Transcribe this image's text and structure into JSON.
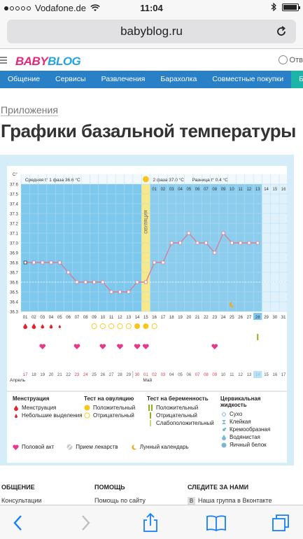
{
  "status_bar": {
    "carrier": "Vodafone.de",
    "time": "11:04",
    "battery_level": 0.95
  },
  "browser": {
    "url": "babyblog.ru"
  },
  "site": {
    "logo_part1": "BABY",
    "logo_part2": "BLOG",
    "login_label": "Отв",
    "nav": [
      "Общение",
      "Сервисы",
      "Развлечения",
      "Барахолка",
      "Совместные покупки",
      "Беременн"
    ],
    "breadcrumb": "Приложения",
    "title": "Графики базальной температуры"
  },
  "chart_data": {
    "type": "line",
    "y_unit": "C°",
    "ylim": [
      36.3,
      37.6
    ],
    "y_ticks": [
      "37.6",
      "37.5",
      "37.4",
      "37.3",
      "37.2",
      "37.1",
      "37.0",
      "36.9",
      "36.8",
      "36.7",
      "36.6",
      "36.5",
      "36.4",
      "36.3"
    ],
    "cycle_days": [
      "01",
      "02",
      "03",
      "04",
      "05",
      "06",
      "07",
      "08",
      "09",
      "10",
      "11",
      "12",
      "13",
      "14",
      "15",
      "16",
      "17",
      "18",
      "19",
      "20",
      "21",
      "22",
      "23",
      "24",
      "25",
      "26",
      "27",
      "28",
      "29",
      "30",
      "31"
    ],
    "dates": [
      "17",
      "18",
      "19",
      "20",
      "21",
      "22",
      "23",
      "24",
      "25",
      "26",
      "27",
      "28",
      "29",
      "30",
      "01",
      "02",
      "03",
      "04",
      "05",
      "06",
      "07",
      "08",
      "09",
      "10",
      "11",
      "12",
      "13",
      "14",
      "15",
      "16",
      "17"
    ],
    "top_dates": [
      "01",
      "02",
      "03",
      "04",
      "05",
      "06",
      "07",
      "08",
      "09",
      "10",
      "11",
      "12",
      "13",
      "14",
      "15",
      "16"
    ],
    "month_labels": {
      "first": "Апрель",
      "second": "Май"
    },
    "phase1_label": "Средняя t° 1 фаза 36.6 °С",
    "phase2_label": "2 фаза 37.0 °С",
    "diff_label": "Разница t° 0.4 °С",
    "ovulation_label": "ОВУЛЯЦИЯ",
    "ovulation_day": 15,
    "temperature": [
      36.8,
      36.8,
      36.8,
      36.8,
      36.8,
      36.7,
      36.6,
      36.6,
      36.6,
      36.6,
      36.5,
      36.5,
      36.5,
      36.6,
      36.6,
      36.8,
      36.8,
      37.0,
      37.0,
      37.1,
      37.0,
      37.0,
      36.9,
      37.1,
      37.0,
      37.0,
      37.0,
      37.0
    ],
    "phase1_mean": 36.6,
    "coverline": 36.6,
    "menstruation_days": [
      1,
      2,
      3,
      4,
      5
    ],
    "ovulation_test_positive": [
      14,
      15
    ],
    "ovulation_test_negative": [
      9,
      10,
      11,
      12,
      13,
      16
    ],
    "intercourse_days": [
      3,
      7,
      10,
      12,
      14,
      15,
      23
    ],
    "pregnancy_test_faint": [
      28
    ],
    "lunar_day": 25,
    "current_day": 28,
    "red_date_indexes": [
      0,
      6,
      7,
      13,
      14,
      15,
      16,
      20,
      21,
      22
    ],
    "pink_column_day": 30
  },
  "legend": {
    "menstruation": {
      "title": "Менструация",
      "items": [
        "Менструация",
        "Небольшие выделения"
      ]
    },
    "ovulation_test": {
      "title": "Тест на овуляцию",
      "items": [
        "Положительный",
        "Отрицательный"
      ]
    },
    "pregnancy_test": {
      "title": "Тест на беременность",
      "items": [
        "Положительный",
        "Отрицательный",
        "Слабоположительный"
      ]
    },
    "cervical_fluid": {
      "title": "Цервикальная жидкость",
      "items": [
        "Сухо",
        "Клейкая",
        "Кремообразная",
        "Водянистая",
        "Яичный белок"
      ]
    },
    "bottom": [
      "Половой акт",
      "Прием лекарств",
      "Лунный календарь"
    ]
  },
  "colors": {
    "nav": "#2980c6",
    "phase1": "#7ec8ee",
    "phase2": "#8ccdee",
    "line": "#d4809a",
    "ovulation": "#f7e98a"
  },
  "footer": {
    "col1_title": "ОБЩЕНИЕ",
    "col1_link": "Консультации",
    "col2_title": "ПОМОЩЬ",
    "col2_link": "Помощь по сайту",
    "col3_title": "СЛЕДИТЕ ЗА НАМИ",
    "col3_link": "Наша группа в Вконтакте"
  }
}
